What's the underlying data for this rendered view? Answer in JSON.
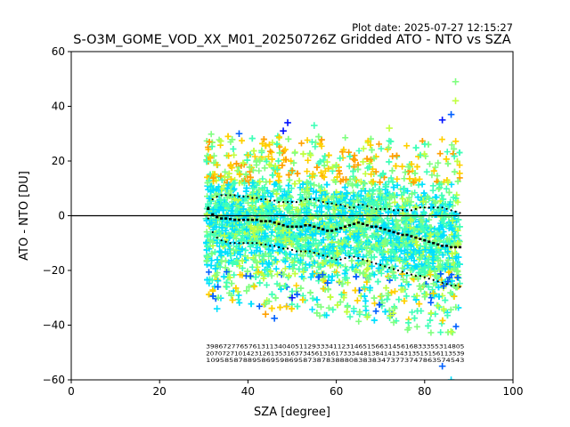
{
  "plot_date": "Plot date: 2025-07-27 12:15:27",
  "chart_data": {
    "type": "scatter",
    "title": "S-O3M_GOME_VOD_XX_M01_20250726Z Gridded ATO - NTO vs SZA",
    "xlabel": "SZA [degree]",
    "ylabel": "ATO - NTO [DU]",
    "xlim": [
      0,
      100
    ],
    "ylim": [
      -60,
      60
    ],
    "x_ticks": [
      0,
      20,
      40,
      60,
      80,
      100
    ],
    "y_ticks": [
      -60,
      -40,
      -20,
      0,
      20,
      40,
      60
    ],
    "grid": false,
    "legend": "none",
    "reference_line": {
      "y": 0,
      "color": "#000000"
    },
    "point_marker": "+",
    "colormap": "jet",
    "point_cloud": {
      "x_range": [
        30.5,
        88
      ],
      "bulk_y_range_low_sza": [
        -30,
        30
      ],
      "bulk_y_range_high_sza": [
        -45,
        28
      ],
      "dominant_colors": [
        "#00e0ff",
        "#40ffb8",
        "#80ff80",
        "#c0ff40",
        "#ffd000",
        "#ffa000",
        "#0060ff",
        "#0010ff"
      ]
    },
    "outliers": [
      {
        "x": 87,
        "y": 49,
        "color": "#80ff80"
      },
      {
        "x": 87,
        "y": 42,
        "color": "#c0ff40"
      },
      {
        "x": 84,
        "y": 35,
        "color": "#0010ff"
      },
      {
        "x": 86,
        "y": 37,
        "color": "#0060ff"
      },
      {
        "x": 49,
        "y": 34,
        "color": "#0010ff"
      },
      {
        "x": 55,
        "y": 33,
        "color": "#40ffb8"
      },
      {
        "x": 48,
        "y": 31,
        "color": "#0010ff"
      },
      {
        "x": 38,
        "y": 30,
        "color": "#0060ff"
      },
      {
        "x": 72,
        "y": 32,
        "color": "#c0ff40"
      },
      {
        "x": 44,
        "y": -36,
        "color": "#ffa000"
      },
      {
        "x": 46,
        "y": -37.5,
        "color": "#0060ff"
      },
      {
        "x": 33,
        "y": -34,
        "color": "#00e0ff"
      },
      {
        "x": 50,
        "y": -30,
        "color": "#0010ff"
      },
      {
        "x": 67,
        "y": -37,
        "color": "#c0ff40"
      },
      {
        "x": 73,
        "y": -39,
        "color": "#80ff80"
      },
      {
        "x": 86,
        "y": -60,
        "color": "#00e0ff"
      },
      {
        "x": 84,
        "y": -55,
        "color": "#0060ff"
      }
    ],
    "series": [
      {
        "name": "mean",
        "marker": "square",
        "x": [
          31,
          32,
          33,
          34,
          35,
          36,
          37,
          38,
          39,
          40,
          41,
          42,
          43,
          44,
          45,
          46,
          47,
          48,
          49,
          50,
          51,
          52,
          53,
          54,
          55,
          56,
          57,
          58,
          59,
          60,
          61,
          62,
          63,
          64,
          65,
          66,
          67,
          68,
          69,
          70,
          71,
          72,
          73,
          74,
          75,
          76,
          77,
          78,
          79,
          80,
          81,
          82,
          83,
          84,
          85,
          86,
          87,
          88
        ],
        "y": [
          2.5,
          0.5,
          -0.5,
          -1,
          -1,
          -1.2,
          -1.5,
          -1.5,
          -1.5,
          -1.5,
          -1.5,
          -1.5,
          -2,
          -2,
          -2,
          -2.5,
          -3,
          -3.5,
          -4,
          -4,
          -4,
          -4,
          -3.5,
          -3.5,
          -4,
          -4.5,
          -5,
          -5.5,
          -5.5,
          -5,
          -4.5,
          -4,
          -3.5,
          -3,
          -2.5,
          -3,
          -3.5,
          -4,
          -4,
          -4.5,
          -5,
          -5.5,
          -6,
          -6.5,
          -7,
          -7,
          -7.5,
          -8,
          -8.5,
          -9,
          -9.5,
          -10,
          -10.5,
          -11,
          -11,
          -11.5,
          -11.5,
          -11.5
        ]
      },
      {
        "name": "mean_plus_std",
        "marker": "point",
        "x": [
          31,
          32,
          33,
          34,
          35,
          36,
          37,
          38,
          39,
          40,
          41,
          42,
          43,
          44,
          45,
          46,
          47,
          48,
          49,
          50,
          51,
          52,
          53,
          54,
          55,
          56,
          57,
          58,
          59,
          60,
          61,
          62,
          63,
          64,
          65,
          66,
          67,
          68,
          69,
          70,
          71,
          72,
          73,
          74,
          75,
          76,
          77,
          78,
          79,
          80,
          81,
          82,
          83,
          84,
          85,
          86,
          87,
          88
        ],
        "y": [
          3,
          6,
          7,
          7.5,
          7.5,
          7.5,
          7.5,
          7,
          7,
          7,
          6.5,
          6.5,
          6,
          6,
          5.5,
          5.5,
          5,
          5,
          5,
          5,
          5,
          5.5,
          6,
          6,
          6,
          5.5,
          5,
          4.5,
          4.5,
          4,
          4,
          3.5,
          3,
          3,
          4,
          4,
          3.5,
          3,
          2.5,
          2.5,
          2.5,
          2.5,
          2,
          2,
          2,
          2,
          2,
          2.5,
          3,
          3,
          3,
          3,
          3,
          3,
          2.5,
          2,
          1.5,
          1
        ]
      },
      {
        "name": "mean_minus_std",
        "marker": "point",
        "x": [
          31,
          32,
          33,
          34,
          35,
          36,
          37,
          38,
          39,
          40,
          41,
          42,
          43,
          44,
          45,
          46,
          47,
          48,
          49,
          50,
          51,
          52,
          53,
          54,
          55,
          56,
          57,
          58,
          59,
          60,
          61,
          62,
          63,
          64,
          65,
          66,
          67,
          68,
          69,
          70,
          71,
          72,
          73,
          74,
          75,
          76,
          77,
          78,
          79,
          80,
          81,
          82,
          83,
          84,
          85,
          86,
          87,
          88
        ],
        "y": [
          -1,
          -6,
          -8,
          -9,
          -9.5,
          -10,
          -10,
          -10,
          -10,
          -10,
          -10,
          -10,
          -10.5,
          -10.5,
          -11,
          -11,
          -11.5,
          -12,
          -12,
          -12.5,
          -13,
          -13,
          -13,
          -13,
          -13.5,
          -14,
          -14.5,
          -15,
          -15.5,
          -16,
          -16,
          -15.5,
          -15,
          -15,
          -15.5,
          -16,
          -16.5,
          -17,
          -17.5,
          -18,
          -18.5,
          -19,
          -19.5,
          -20,
          -20.5,
          -21,
          -21.5,
          -22,
          -22,
          -22.5,
          -23,
          -23.5,
          -24,
          -24.5,
          -25,
          -25.5,
          -25.5,
          -26
        ]
      }
    ],
    "counts_annotation": {
      "rows": [
        "3986727765761311340405112933341123146515663145616833355314805",
        "2070727101423126135316373456131617333448138414134313515156113539",
        "10958587889586959869587387838880838383473773747863574543"
      ],
      "x_range": [
        30.5,
        89
      ],
      "y_positions": [
        -48.5,
        -51,
        -53.5
      ]
    }
  }
}
